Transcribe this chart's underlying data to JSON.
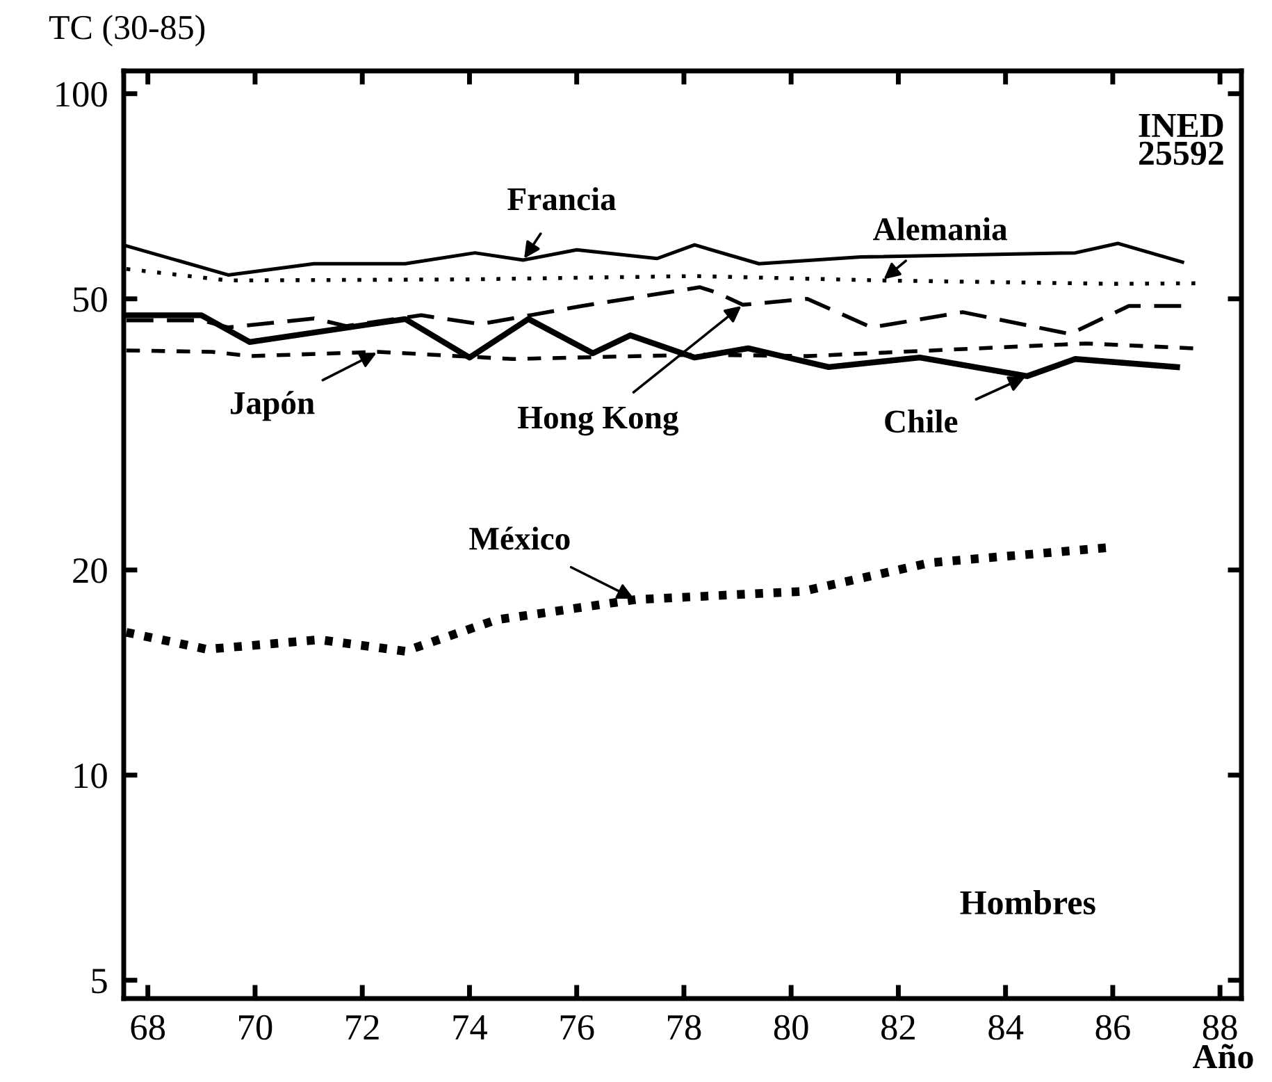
{
  "chart_data": {
    "type": "line",
    "ylabel": "TC (30-85)",
    "xlabel": "Año",
    "log": "y",
    "xlim": [
      67.55,
      88.4
    ],
    "ylim": [
      4.7,
      108
    ],
    "xticks": [
      68,
      70,
      72,
      74,
      76,
      78,
      80,
      82,
      84,
      86,
      88
    ],
    "yticks": [
      5,
      10,
      20,
      50,
      100
    ],
    "grid": false,
    "legend": false,
    "series": [
      {
        "name": "Francia",
        "color": "#000000",
        "line_style": "solid",
        "x": [
          67.6,
          69.5,
          71.1,
          72.8,
          74.1,
          75.0,
          76.0,
          77.5,
          78.2,
          79.4,
          81.3,
          85.3,
          86.1,
          87.3
        ],
        "values": [
          59.8,
          54.2,
          56.3,
          56.3,
          58.4,
          57.0,
          59.0,
          57.3,
          60.0,
          56.3,
          57.6,
          58.4,
          60.3,
          56.6
        ]
      },
      {
        "name": "Alemania",
        "color": "#000000",
        "line_style": "dotted",
        "x": [
          67.6,
          69.5,
          74.0,
          78.2,
          81.7,
          86.0,
          87.6
        ],
        "values": [
          55.3,
          53.2,
          53.4,
          54.0,
          53.2,
          52.6,
          52.7
        ]
      },
      {
        "name": "Hong Kong",
        "color": "#000000",
        "line_style": "dashed",
        "x": [
          67.6,
          69.0,
          69.5,
          71.1,
          71.7,
          73.1,
          74.2,
          76.1,
          78.3,
          78.6,
          79.1,
          80.3,
          81.5,
          83.2,
          85.2,
          86.3,
          87.3
        ],
        "values": [
          46.5,
          46.5,
          45.4,
          46.8,
          45.6,
          47.3,
          45.9,
          48.8,
          52.0,
          51.1,
          49.0,
          50.0,
          45.4,
          47.8,
          44.4,
          48.8,
          48.8
        ]
      },
      {
        "name": "Chile",
        "color": "#000000",
        "line_style": "solid",
        "x": [
          67.6,
          69.0,
          69.9,
          72.8,
          74.0,
          75.1,
          76.3,
          77.0,
          78.2,
          79.2,
          80.7,
          82.4,
          84.4,
          85.3,
          87.2
        ],
        "values": [
          47.3,
          47.3,
          43.2,
          46.7,
          41.0,
          46.7,
          41.6,
          44.2,
          41.0,
          42.3,
          39.7,
          41.0,
          38.5,
          40.8,
          39.7
        ]
      },
      {
        "name": "Japón",
        "color": "#000000",
        "line_style": "dashed",
        "x": [
          67.6,
          69.2,
          69.9,
          72.3,
          74.8,
          78.3,
          80.3,
          85.5,
          87.5
        ],
        "values": [
          42.0,
          41.8,
          41.2,
          41.8,
          40.8,
          41.4,
          41.2,
          43.0,
          42.3
        ]
      },
      {
        "name": "México",
        "color": "#000000",
        "line_style": "dotted",
        "x": [
          67.6,
          69.1,
          71.2,
          72.8,
          74.5,
          77.1,
          80.2,
          82.6,
          86.0
        ],
        "values": [
          16.2,
          15.3,
          15.8,
          15.2,
          16.9,
          18.1,
          18.6,
          20.5,
          21.6
        ]
      }
    ],
    "annotations": [
      "INED\n25592",
      "Hombres"
    ]
  }
}
